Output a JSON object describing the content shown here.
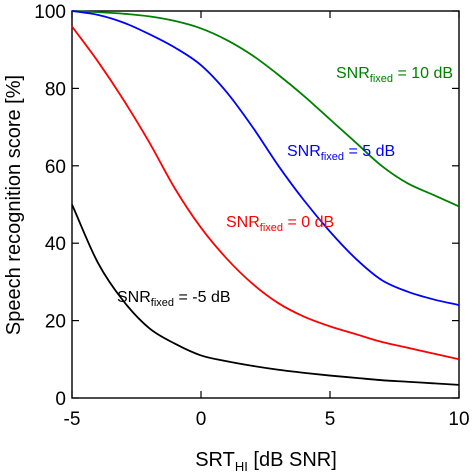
{
  "chart_data": {
    "type": "line",
    "title": "",
    "xlabel": {
      "main": "SRT",
      "sub": "HI",
      "suffix": " [dB SNR]"
    },
    "ylabel": "Speech recognition score [%]",
    "xlim": [
      -5,
      10
    ],
    "ylim": [
      0,
      100
    ],
    "xticks": [
      -5,
      0,
      5,
      10
    ],
    "yticks": [
      0,
      20,
      40,
      60,
      80,
      100
    ],
    "xtick_labels": [
      "-5",
      "0",
      "5",
      "10"
    ],
    "ytick_labels": [
      "0",
      "20",
      "40",
      "60",
      "80",
      "100"
    ],
    "grid": false,
    "x": [
      -5,
      -4,
      -3,
      -2,
      -1,
      0,
      1,
      2,
      3,
      4,
      5,
      6,
      7,
      8,
      9,
      10
    ],
    "series": [
      {
        "key": "snr10",
        "label_main": "SNR",
        "label_sub": "fixed",
        "label_rest": " = 10 dB",
        "color": "#008000",
        "values": [
          100,
          99.7,
          99.3,
          98.6,
          97.4,
          95.5,
          92.5,
          88.5,
          83.5,
          78,
          72,
          66,
          60,
          55.5,
          52.5,
          49.5
        ]
      },
      {
        "key": "snr5",
        "label_main": "SNR",
        "label_sub": "fixed",
        "label_rest": " = 5 dB",
        "color": "#0000ff",
        "values": [
          100,
          99,
          97,
          94,
          90.5,
          86,
          79,
          70,
          60,
          51,
          43,
          36,
          30.5,
          27.5,
          25.5,
          24
        ]
      },
      {
        "key": "snr0",
        "label_main": "SNR",
        "label_sub": "fixed",
        "label_rest": " = 0 dB",
        "color": "#ff0000",
        "values": [
          96,
          87,
          77,
          66,
          54,
          44,
          36,
          29.5,
          24.5,
          21,
          18.5,
          16.5,
          14.5,
          13,
          11.5,
          10
        ]
      },
      {
        "key": "snrm5",
        "label_main": "SNR",
        "label_sub": "fixed",
        "label_rest": " = -5 dB",
        "color": "#000000",
        "values": [
          50,
          35,
          25,
          18,
          14,
          11,
          9.5,
          8.3,
          7.3,
          6.5,
          5.8,
          5.2,
          4.6,
          4.2,
          3.8,
          3.4
        ]
      }
    ]
  }
}
